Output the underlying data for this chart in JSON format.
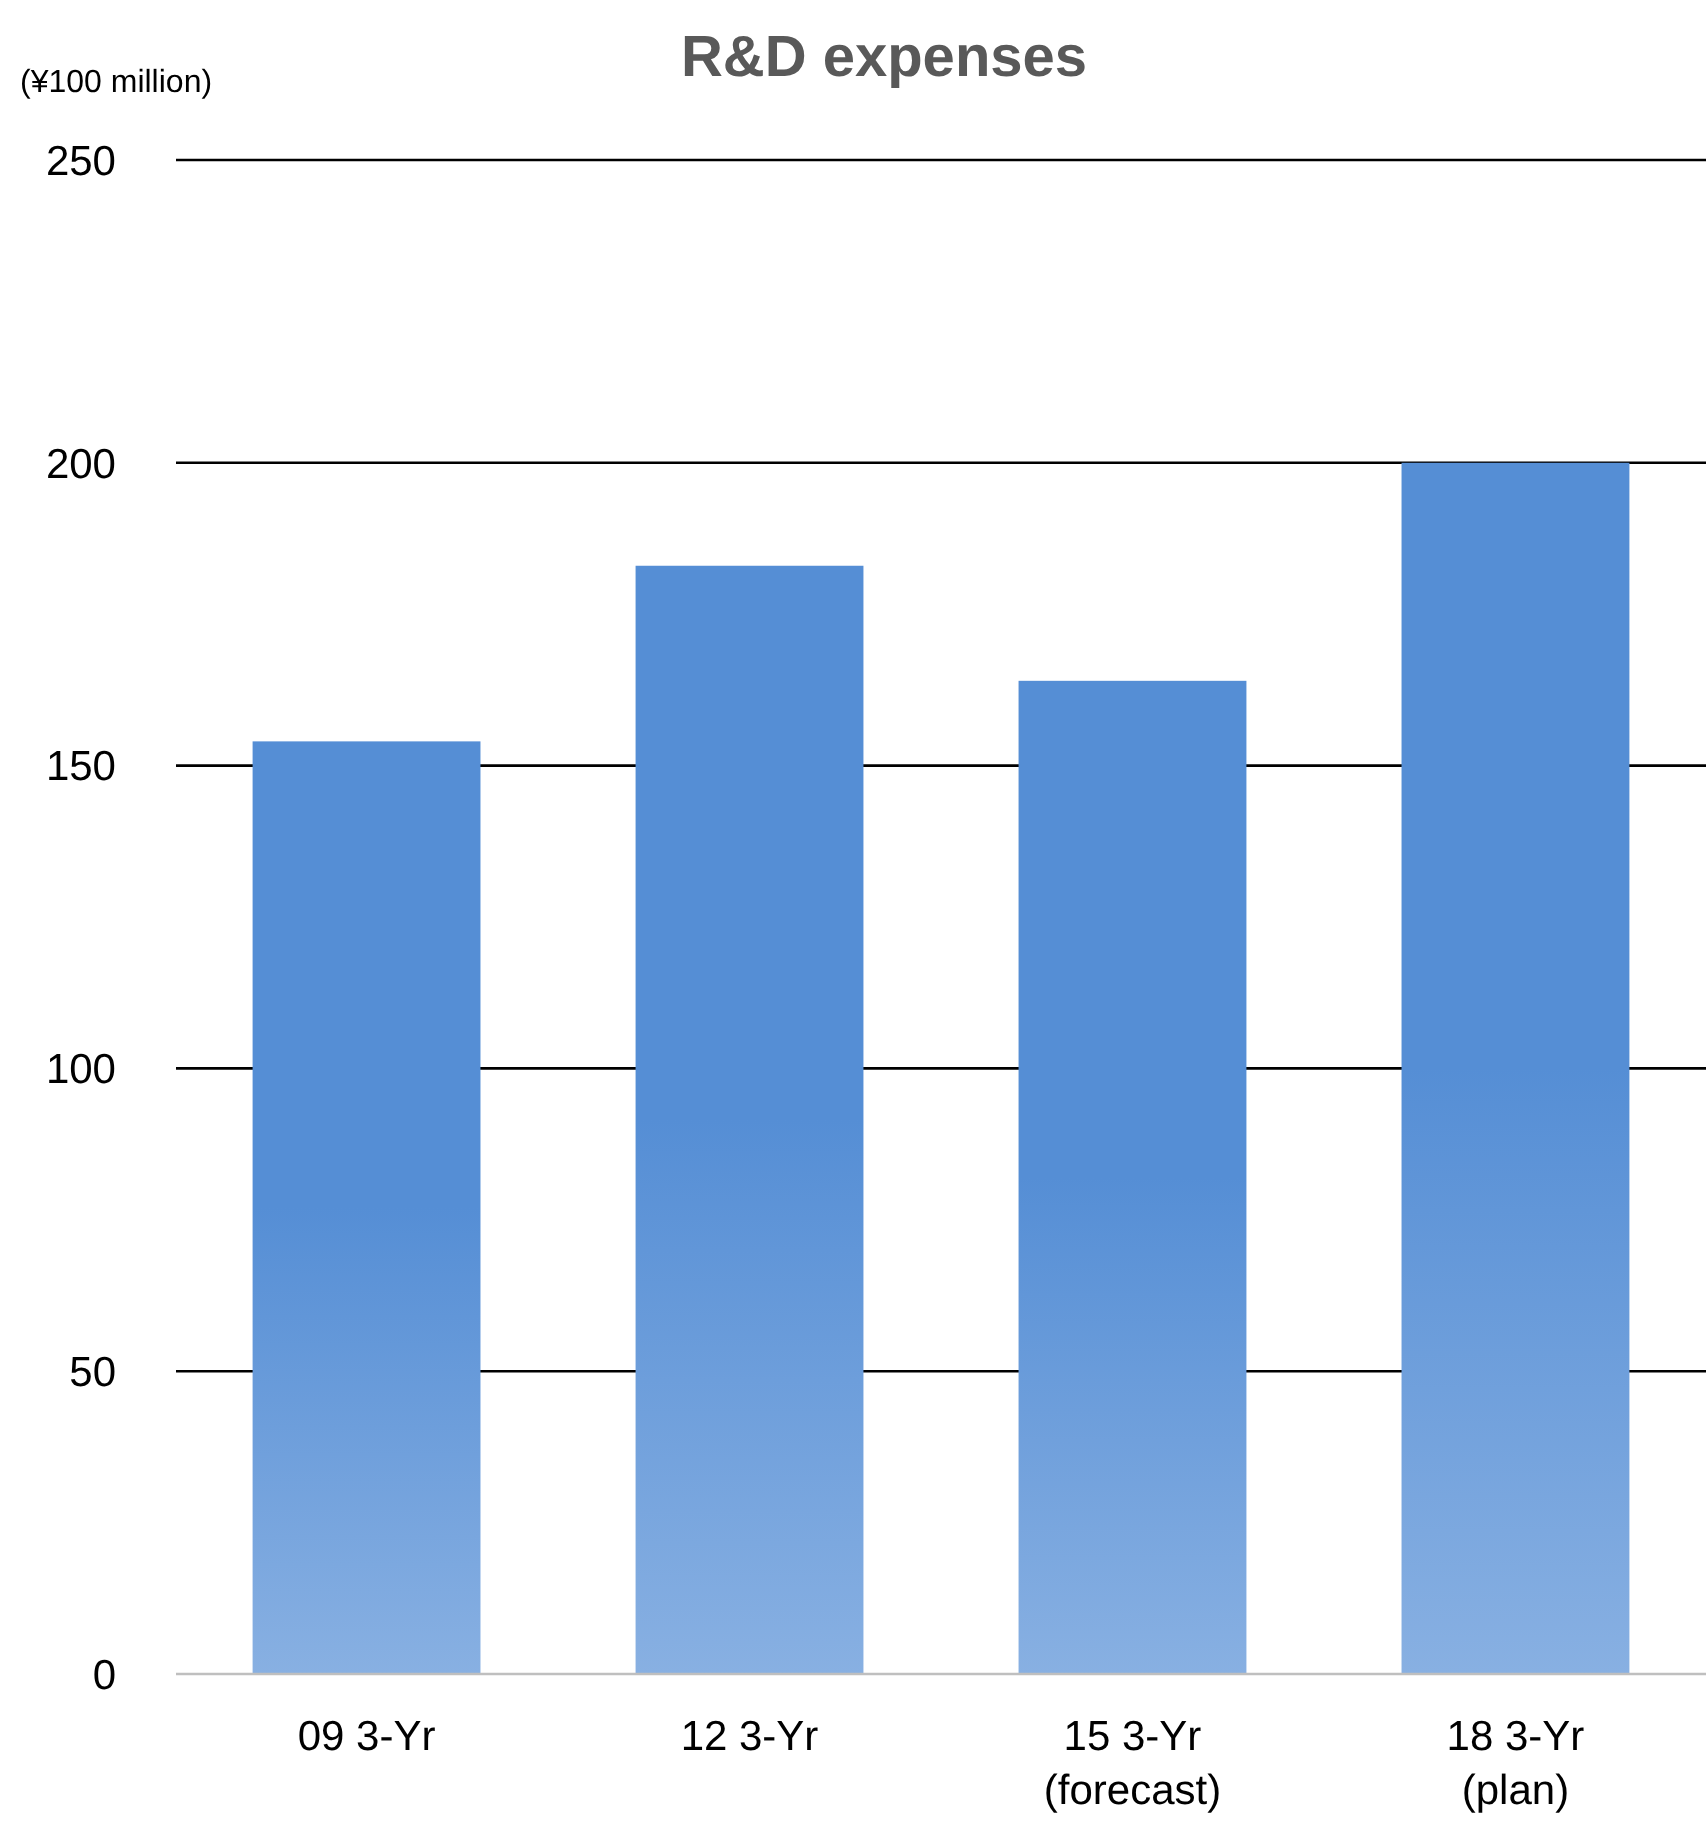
{
  "chart_data": {
    "type": "bar",
    "title": "R&D expenses",
    "ylabel": "(¥100 million)",
    "categories": [
      "09 3-Yr",
      "12 3-Yr",
      "15 3-Yr\n(forecast)",
      "18 3-Yr\n(plan)"
    ],
    "values": [
      154,
      183,
      164,
      200
    ],
    "color": "#558ed5",
    "ylim": [
      0,
      250
    ],
    "yticks": [
      0,
      50,
      100,
      150,
      200,
      250
    ],
    "grid": "y"
  }
}
